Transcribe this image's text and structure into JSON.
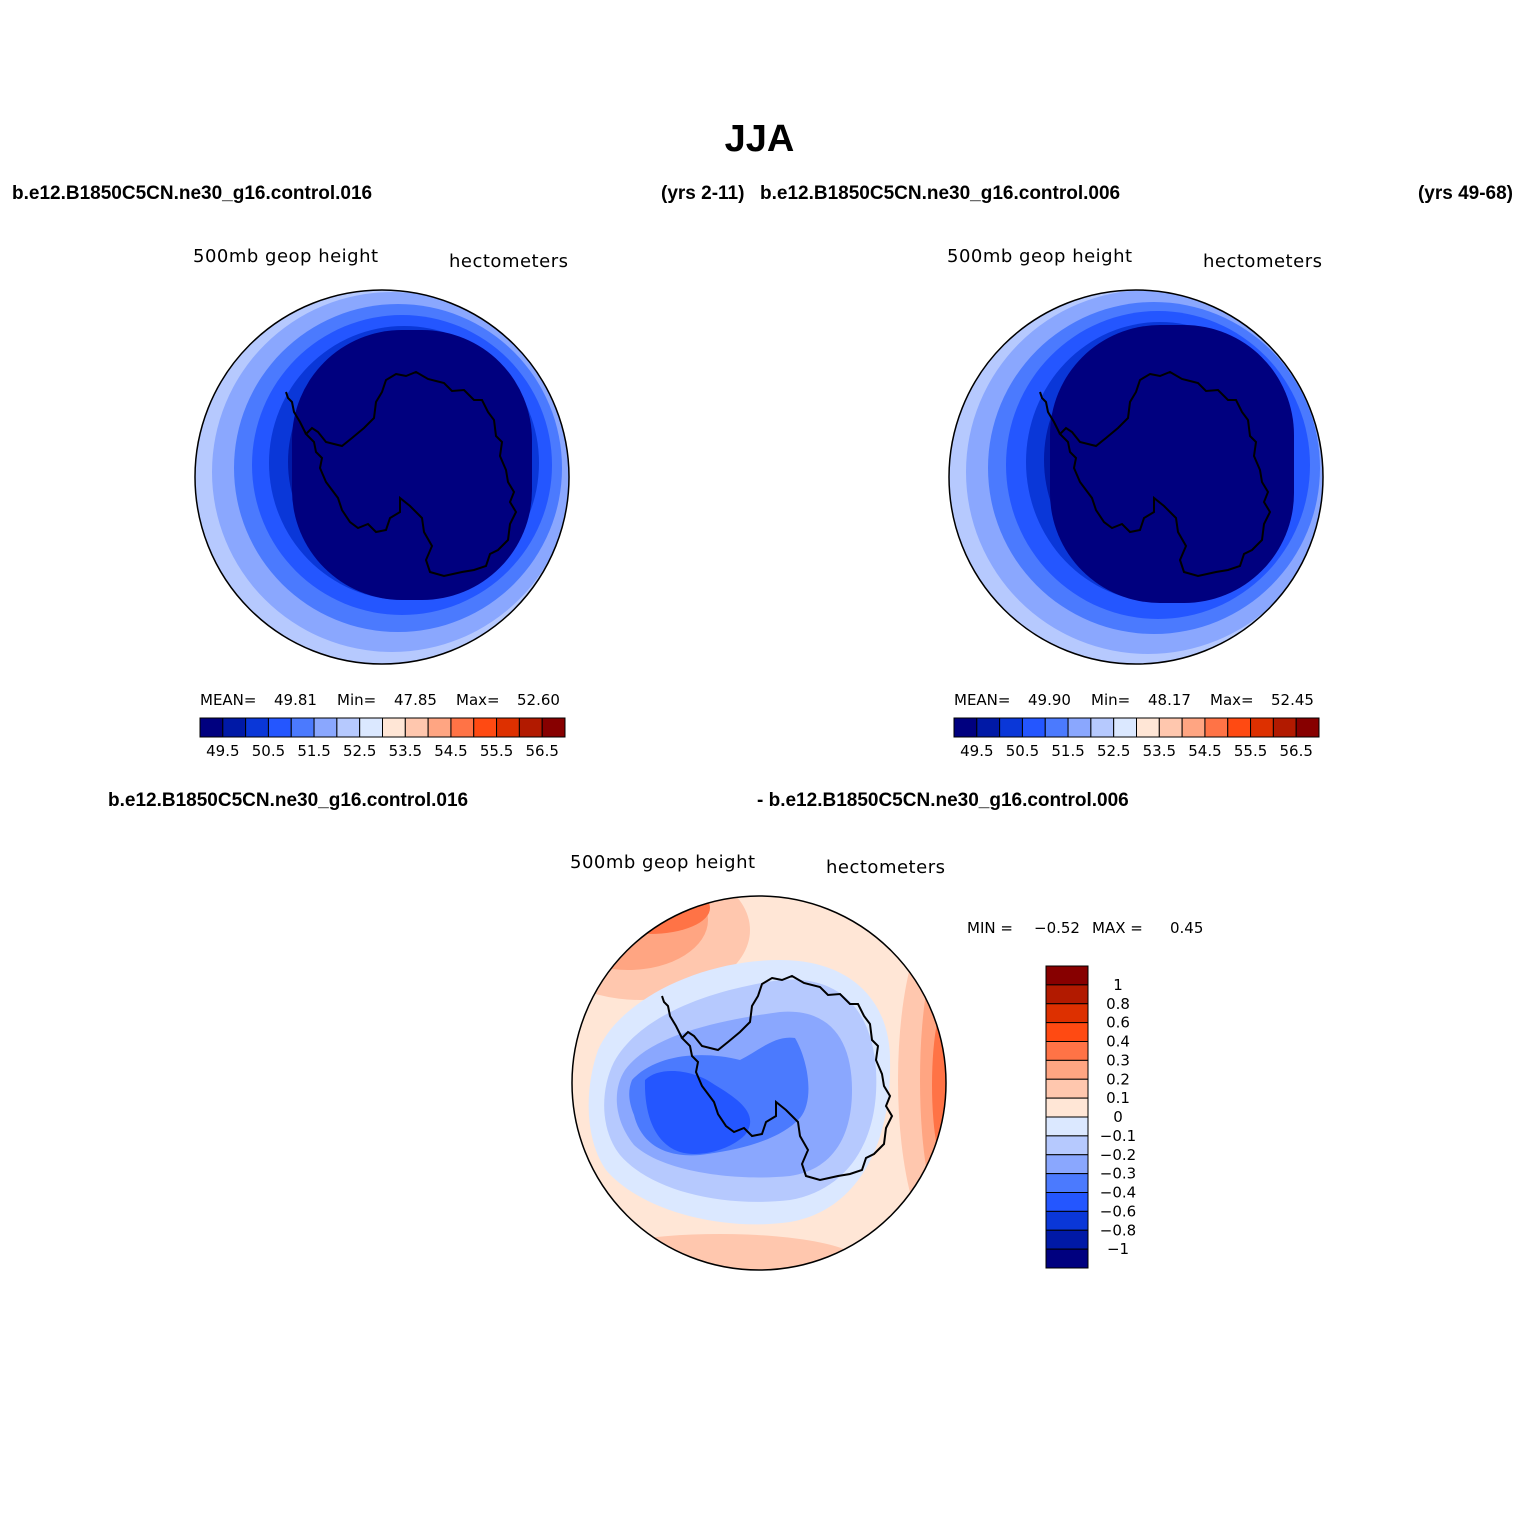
{
  "figure": {
    "title": "JJA",
    "case_a_name": "b.e12.B1850C5CN.ne30_g16.control.016",
    "case_a_years": "(yrs 2-11)",
    "case_b_name": "b.e12.B1850C5CN.ne30_g16.control.006",
    "case_b_years": "(yrs 49-68)",
    "diff_left": "b.e12.B1850C5CN.ne30_g16.control.016",
    "diff_right": "- b.e12.B1850C5CN.ne30_g16.control.006"
  },
  "panels": [
    {
      "variable": "500mb  geop  height",
      "units": "hectometers",
      "stats": {
        "mean_label": "MEAN=",
        "mean": "49.81",
        "min_label": "Min=",
        "min": "47.85",
        "max_label": "Max=",
        "max": "52.60"
      }
    },
    {
      "variable": "500mb  geop  height",
      "units": "hectometers",
      "stats": {
        "mean_label": "MEAN=",
        "mean": "49.90",
        "min_label": "Min=",
        "min": "48.17",
        "max_label": "Max=",
        "max": "52.45"
      }
    },
    {
      "variable": "500mb  geop  height",
      "units": "hectometers",
      "stats": {
        "min_label": "MIN =",
        "min": "−0.52",
        "max_label": "MAX =",
        "max": "0.45"
      }
    }
  ],
  "chart_data": [
    {
      "type": "heatmap",
      "projection": "south polar stereographic",
      "field": "500mb geop height JJA mean, case 016",
      "levels": [
        49.5,
        50.5,
        51.5,
        52.5,
        53.5,
        54.5,
        55.5,
        56.5
      ],
      "colorbar_ticks": [
        "49.5",
        "50.5",
        "51.5",
        "52.5",
        "53.5",
        "54.5",
        "55.5",
        "56.5"
      ],
      "colors": [
        "#00007f",
        "#0019a6",
        "#0a37d8",
        "#2456ff",
        "#4b7afe",
        "#8aa7fe",
        "#b6c9fe",
        "#dbe8ff",
        "#ffe6d6",
        "#ffc7ae",
        "#ffa582",
        "#ff7346",
        "#ff4a12",
        "#dd3000",
        "#b21a00",
        "#870000"
      ],
      "approx_band_radii_fraction": {
        "ge_51.5": 1.0,
        "ge_51.0": 0.92,
        "ge_50.5": 0.84,
        "ge_50.0": 0.76,
        "ge_49.5": 0.66,
        "lt_49.5": 0.58
      }
    },
    {
      "type": "heatmap",
      "projection": "south polar stereographic",
      "field": "500mb geop height JJA mean, case 006",
      "levels": [
        49.5,
        50.5,
        51.5,
        52.5,
        53.5,
        54.5,
        55.5,
        56.5
      ],
      "colorbar_ticks": [
        "49.5",
        "50.5",
        "51.5",
        "52.5",
        "53.5",
        "54.5",
        "55.5",
        "56.5"
      ],
      "colors": [
        "#00007f",
        "#0019a6",
        "#0a37d8",
        "#2456ff",
        "#4b7afe",
        "#8aa7fe",
        "#b6c9fe",
        "#dbe8ff",
        "#ffe6d6",
        "#ffc7ae",
        "#ffa582",
        "#ff7346",
        "#ff4a12",
        "#dd3000",
        "#b21a00",
        "#870000"
      ]
    },
    {
      "type": "heatmap",
      "projection": "south polar stereographic",
      "field": "difference 016 - 006",
      "levels": [
        -1,
        -0.8,
        -0.6,
        -0.4,
        -0.3,
        -0.2,
        -0.1,
        0,
        0.1,
        0.2,
        0.3,
        0.4,
        0.6,
        0.8,
        1
      ],
      "colorbar_ticks": [
        "1",
        "0.8",
        "0.6",
        "0.4",
        "0.3",
        "0.2",
        "0.1",
        "0",
        "−0.1",
        "−0.2",
        "−0.3",
        "−0.4",
        "−0.6",
        "−0.8",
        "−1"
      ],
      "colors_top_to_bottom": [
        "#870000",
        "#b21a00",
        "#dd3000",
        "#ff4a12",
        "#ff7346",
        "#ffa582",
        "#ffc7ae",
        "#ffe6d6",
        "#dbe8ff",
        "#b6c9fe",
        "#8aa7fe",
        "#4b7afe",
        "#2456ff",
        "#0a37d8",
        "#0019a6",
        "#00007f"
      ]
    }
  ]
}
